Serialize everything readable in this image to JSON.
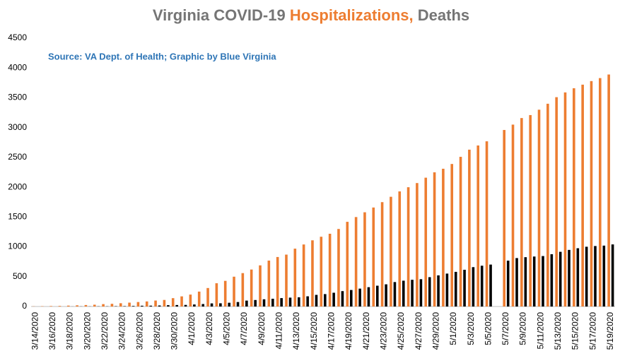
{
  "chart_data": {
    "type": "bar",
    "title": [
      "Virginia COVID-19",
      "Hospitalizations,",
      "Deaths"
    ],
    "subtitle": "Source: VA Dept. of Health; Graphic by Blue Virginia",
    "categories": [
      "3/14/2020",
      null,
      "3/16/2020",
      null,
      "3/18/2020",
      null,
      "3/20/2020",
      null,
      "3/22/2020",
      null,
      "3/24/2020",
      null,
      "3/26/2020",
      null,
      "3/28/2020",
      null,
      "3/30/2020",
      null,
      "4/1/2020",
      null,
      "4/3/2020",
      null,
      "4/5/2020",
      null,
      "4/7/2020",
      null,
      "4/9/2020",
      null,
      "4/11/2020",
      null,
      "4/13/2020",
      null,
      "4/15/2020",
      null,
      "4/17/2020",
      null,
      "4/19/2020",
      null,
      "4/21/2020",
      null,
      "4/23/2020",
      null,
      "4/25/2020",
      null,
      "4/27/2020",
      null,
      "4/29/2020",
      null,
      "5/1/2020",
      null,
      "5/3/2020",
      null,
      "5/5/2020",
      null,
      "5/7/2020",
      null,
      "5/9/2020",
      null,
      "5/11/2020",
      null,
      "5/13/2020",
      null,
      "5/15/2020",
      null,
      "5/17/2020",
      null,
      "5/19/2020"
    ],
    "series": [
      {
        "color": "#ed7d31",
        "values": [
          3,
          5,
          8,
          10,
          15,
          20,
          25,
          30,
          40,
          45,
          55,
          65,
          75,
          85,
          100,
          110,
          140,
          170,
          200,
          250,
          310,
          390,
          430,
          500,
          560,
          620,
          690,
          770,
          830,
          870,
          970,
          1040,
          1110,
          1170,
          1220,
          1300,
          1420,
          1500,
          1580,
          1660,
          1750,
          1840,
          1930,
          2000,
          2070,
          2160,
          2250,
          2310,
          2390,
          2510,
          2630,
          2700,
          2770,
          null,
          2960,
          3050,
          3160,
          3210,
          3300,
          3400,
          3510,
          3590,
          3660,
          3720,
          3780,
          3830,
          3890
        ]
      },
      {
        "color": "#000000",
        "values": [
          0,
          0,
          0,
          0,
          1,
          2,
          2,
          3,
          3,
          5,
          6,
          9,
          13,
          14,
          17,
          22,
          25,
          27,
          34,
          41,
          52,
          54,
          63,
          75,
          99,
          109,
          121,
          130,
          141,
          149,
          154,
          171,
          195,
          208,
          231,
          258,
          277,
          300,
          324,
          349,
          372,
          410,
          433,
          448,
          458,
          492,
          522,
          552,
          581,
          616,
          660,
          684,
          703,
          null,
          769,
          812,
          827,
          838,
          846,
          877,
          917,
          949,
          977,
          1002,
          1014,
          1021,
          1041
        ]
      }
    ],
    "ylim": [
      0,
      4500
    ],
    "yticks": [
      0,
      500,
      1000,
      1500,
      2000,
      2500,
      3000,
      3500,
      4000,
      4500
    ],
    "grid": false
  }
}
